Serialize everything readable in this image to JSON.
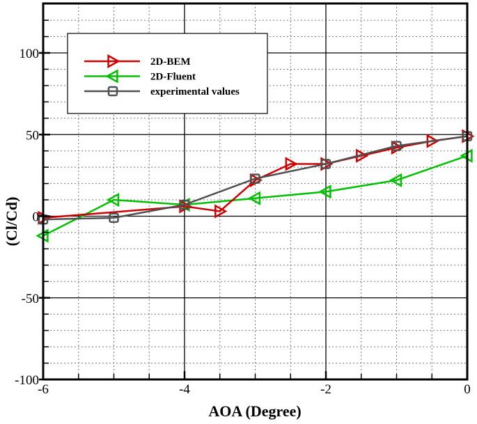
{
  "chart_data": {
    "type": "line",
    "title": "",
    "xlabel": "AOA (Degree)",
    "ylabel": "(Cl/Cd)",
    "xlim": [
      -6,
      0
    ],
    "ylim": [
      -100,
      130
    ],
    "x_ticks": [
      -6,
      -4,
      -2,
      0
    ],
    "x_tick_labels": [
      "-6",
      "-4",
      "-2",
      "0"
    ],
    "y_ticks": [
      -100,
      -50,
      0,
      50,
      100
    ],
    "y_tick_labels": [
      "-100",
      "-50",
      "0",
      "50",
      "100"
    ],
    "grid": {
      "major": "solid",
      "minor": "dotted",
      "x_minor_step": 0.5,
      "y_minor_step": 10
    },
    "legend_position": "upper left (inside)",
    "series": [
      {
        "name": "2D-BEM",
        "color": "#d00000",
        "marker": "triangle-right",
        "x": [
          -6,
          -4,
          -3.5,
          -3,
          -2.5,
          -2,
          -1.5,
          -1,
          -0.5,
          0
        ],
        "y": [
          -1,
          6,
          3,
          22,
          32,
          32,
          37,
          42,
          46,
          49
        ]
      },
      {
        "name": "2D-Fluent",
        "color": "#00c000",
        "marker": "triangle-left",
        "x": [
          -6,
          -5,
          -4,
          -3,
          -2,
          -1,
          0
        ],
        "y": [
          -12,
          10,
          7,
          11,
          15,
          22,
          37
        ]
      },
      {
        "name": "experimental values",
        "color": "#505050",
        "marker": "square",
        "x": [
          -6,
          -5,
          -4,
          -3,
          -2,
          -1,
          0
        ],
        "y": [
          -2,
          -1,
          7,
          23,
          32,
          43,
          49
        ]
      }
    ]
  }
}
